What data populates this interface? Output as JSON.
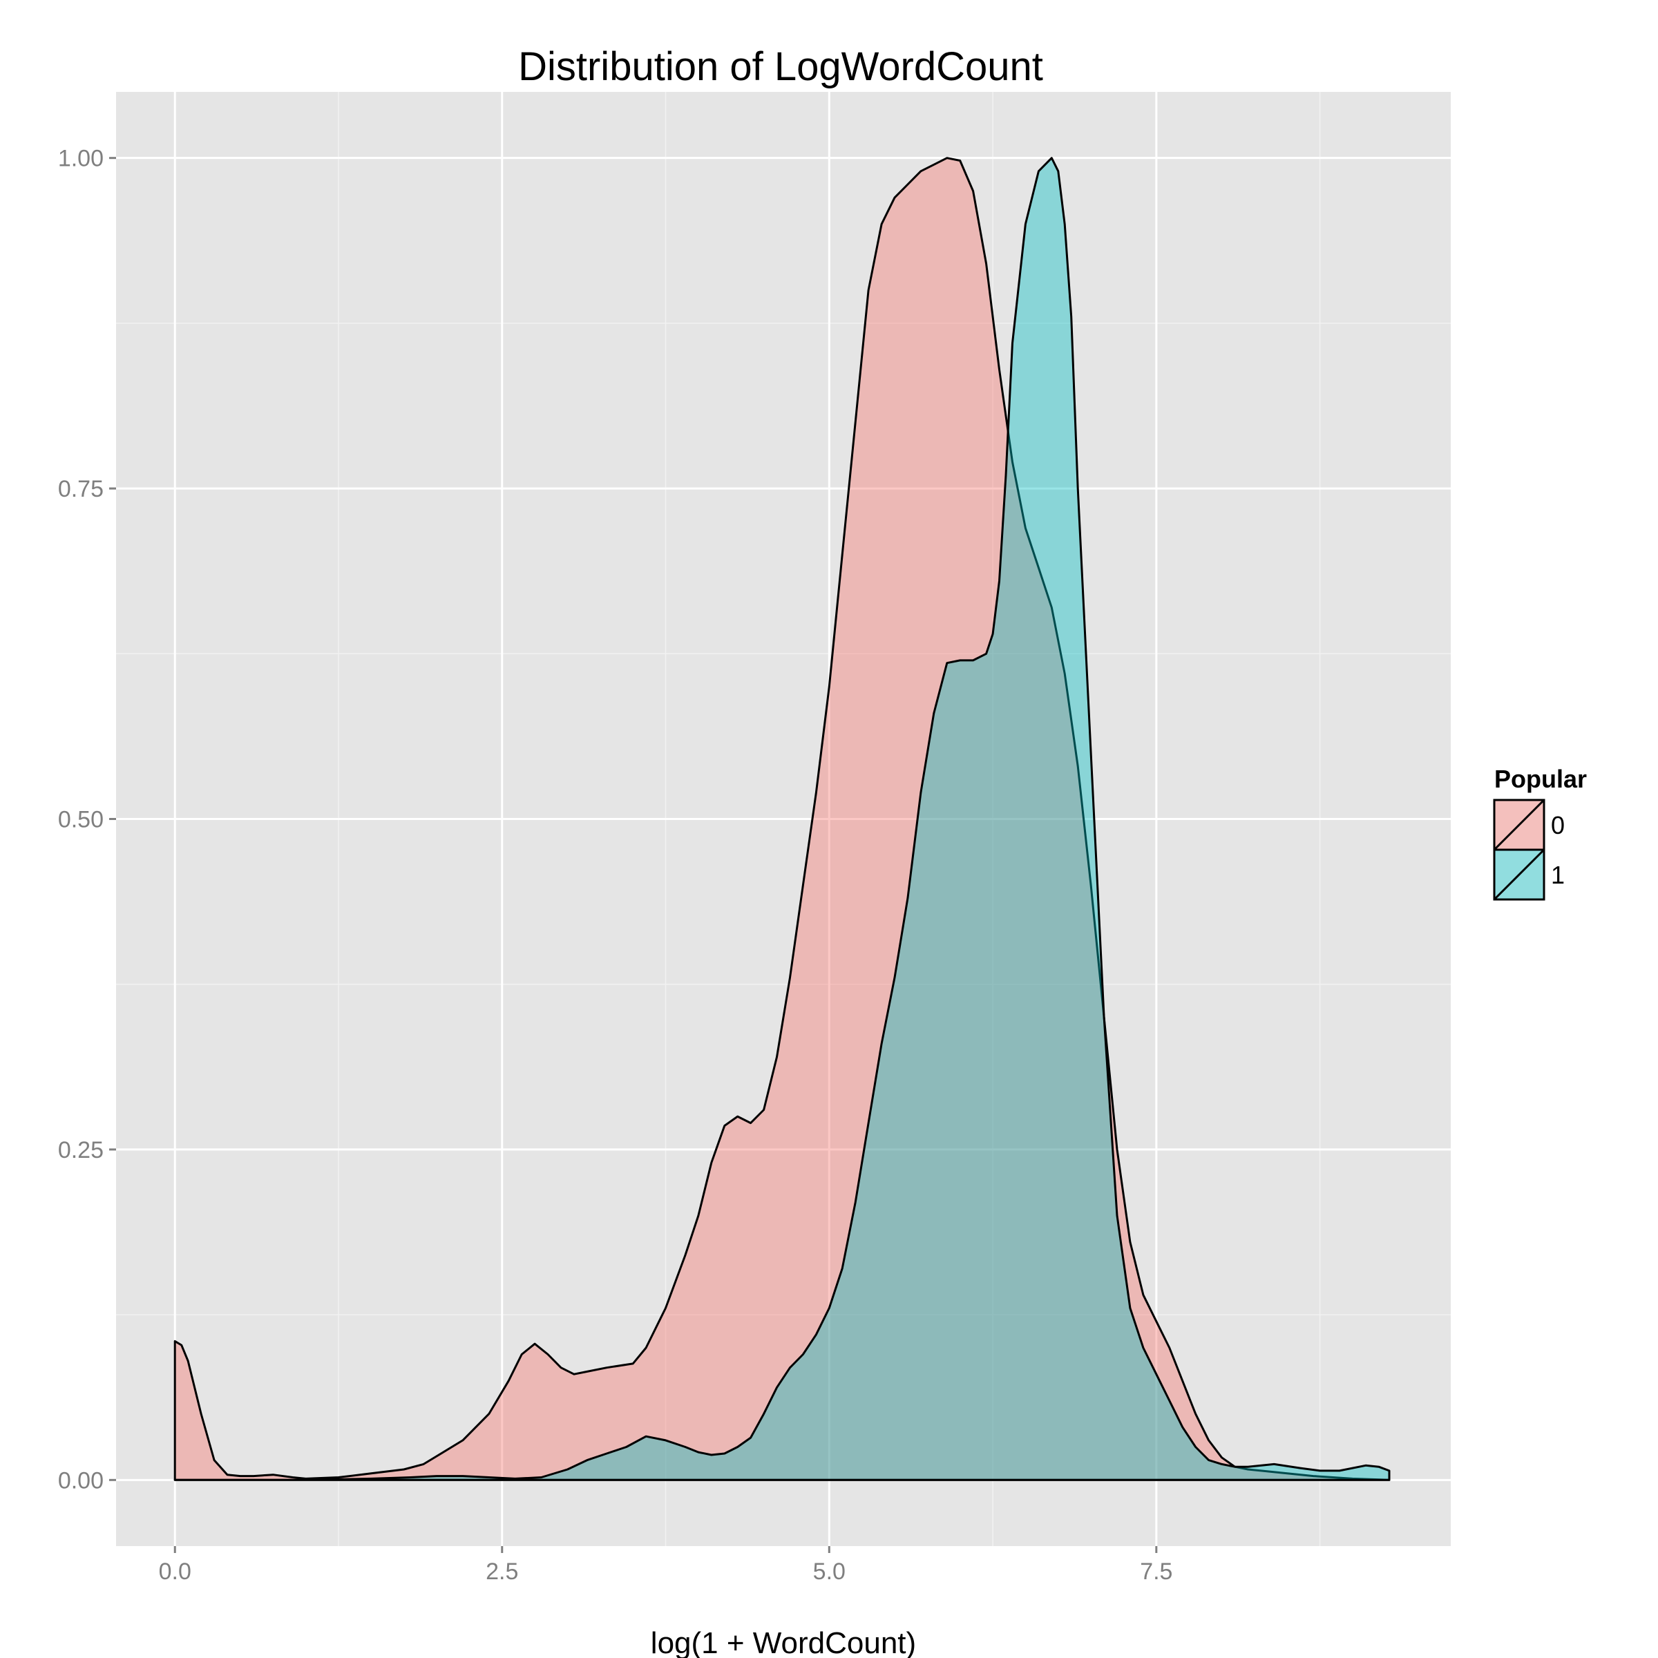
{
  "chart_data": {
    "type": "area",
    "title": "Distribution of LogWordCount",
    "xlabel": "log(1 + WordCount)",
    "ylabel": "",
    "xlim": [
      -0.45,
      9.75
    ],
    "ylim": [
      -0.05,
      1.05
    ],
    "x_ticks": [
      {
        "value": 0.0,
        "label": "0.0"
      },
      {
        "value": 2.5,
        "label": "2.5"
      },
      {
        "value": 5.0,
        "label": "5.0"
      },
      {
        "value": 7.5,
        "label": "7.5"
      }
    ],
    "y_ticks": [
      {
        "value": 0.0,
        "label": "0.00"
      },
      {
        "value": 0.25,
        "label": "0.25"
      },
      {
        "value": 0.5,
        "label": "0.50"
      },
      {
        "value": 0.75,
        "label": "0.75"
      },
      {
        "value": 1.0,
        "label": "1.00"
      }
    ],
    "grid": true,
    "legend": {
      "title": "Popular",
      "position": "right"
    },
    "series": [
      {
        "name": "0",
        "color": "#F8766D",
        "x": [
          0.0,
          0.05,
          0.1,
          0.2,
          0.3,
          0.4,
          0.5,
          0.6,
          0.75,
          0.9,
          1.0,
          1.25,
          1.5,
          1.75,
          1.9,
          2.0,
          2.2,
          2.4,
          2.55,
          2.65,
          2.75,
          2.85,
          2.95,
          3.05,
          3.15,
          3.3,
          3.5,
          3.6,
          3.75,
          3.9,
          4.0,
          4.1,
          4.2,
          4.3,
          4.4,
          4.5,
          4.6,
          4.7,
          4.8,
          4.9,
          5.0,
          5.1,
          5.2,
          5.3,
          5.4,
          5.5,
          5.6,
          5.7,
          5.8,
          5.9,
          6.0,
          6.1,
          6.2,
          6.3,
          6.4,
          6.5,
          6.6,
          6.7,
          6.8,
          6.9,
          7.0,
          7.1,
          7.2,
          7.3,
          7.4,
          7.5,
          7.6,
          7.7,
          7.8,
          7.9,
          8.0,
          8.1,
          8.2,
          8.3,
          8.5,
          8.7,
          9.0,
          9.28
        ],
        "values": [
          0.105,
          0.102,
          0.09,
          0.05,
          0.015,
          0.004,
          0.003,
          0.003,
          0.004,
          0.002,
          0.001,
          0.002,
          0.005,
          0.008,
          0.012,
          0.018,
          0.03,
          0.05,
          0.075,
          0.095,
          0.103,
          0.095,
          0.085,
          0.08,
          0.082,
          0.085,
          0.088,
          0.1,
          0.13,
          0.17,
          0.2,
          0.24,
          0.268,
          0.275,
          0.27,
          0.28,
          0.32,
          0.38,
          0.45,
          0.52,
          0.6,
          0.7,
          0.8,
          0.9,
          0.95,
          0.97,
          0.98,
          0.99,
          0.995,
          1.0,
          0.998,
          0.975,
          0.92,
          0.84,
          0.77,
          0.72,
          0.69,
          0.66,
          0.61,
          0.54,
          0.45,
          0.35,
          0.25,
          0.18,
          0.14,
          0.12,
          0.1,
          0.075,
          0.05,
          0.03,
          0.017,
          0.01,
          0.008,
          0.007,
          0.005,
          0.003,
          0.001,
          0.0
        ]
      },
      {
        "name": "1",
        "color": "#00BFC4",
        "x": [
          0.0,
          1.0,
          1.5,
          1.8,
          2.0,
          2.2,
          2.4,
          2.6,
          2.8,
          3.0,
          3.15,
          3.3,
          3.45,
          3.6,
          3.75,
          3.9,
          4.0,
          4.1,
          4.2,
          4.3,
          4.4,
          4.5,
          4.6,
          4.7,
          4.8,
          4.9,
          5.0,
          5.1,
          5.2,
          5.3,
          5.4,
          5.5,
          5.6,
          5.7,
          5.8,
          5.9,
          6.0,
          6.1,
          6.2,
          6.25,
          6.3,
          6.35,
          6.4,
          6.5,
          6.6,
          6.7,
          6.75,
          6.8,
          6.85,
          6.9,
          7.0,
          7.1,
          7.2,
          7.3,
          7.4,
          7.5,
          7.6,
          7.7,
          7.8,
          7.9,
          8.0,
          8.1,
          8.2,
          8.4,
          8.6,
          8.75,
          8.9,
          9.1,
          9.2,
          9.28
        ],
        "values": [
          0.0,
          0.0,
          0.001,
          0.002,
          0.003,
          0.003,
          0.002,
          0.001,
          0.002,
          0.008,
          0.015,
          0.02,
          0.025,
          0.033,
          0.03,
          0.025,
          0.021,
          0.019,
          0.02,
          0.025,
          0.032,
          0.05,
          0.07,
          0.085,
          0.095,
          0.11,
          0.13,
          0.16,
          0.21,
          0.27,
          0.33,
          0.38,
          0.44,
          0.52,
          0.58,
          0.618,
          0.62,
          0.62,
          0.625,
          0.64,
          0.68,
          0.76,
          0.86,
          0.95,
          0.99,
          1.0,
          0.99,
          0.95,
          0.88,
          0.75,
          0.55,
          0.35,
          0.2,
          0.13,
          0.1,
          0.08,
          0.06,
          0.04,
          0.025,
          0.015,
          0.012,
          0.01,
          0.01,
          0.012,
          0.009,
          0.007,
          0.007,
          0.011,
          0.01,
          0.007
        ]
      }
    ]
  }
}
